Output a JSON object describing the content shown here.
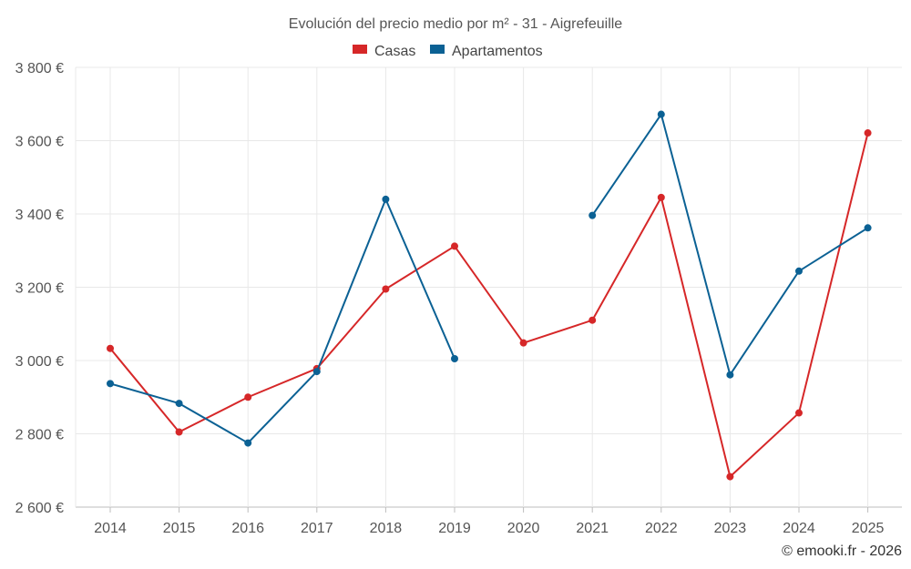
{
  "chart_data": {
    "type": "line",
    "title": "Evolución del precio medio por m² - 31 - Aigrefeuille",
    "x": [
      "2014",
      "2015",
      "2016",
      "2017",
      "2018",
      "2019",
      "2020",
      "2021",
      "2022",
      "2023",
      "2024",
      "2025"
    ],
    "y_ticks": [
      "2 600 €",
      "2 800 €",
      "3 000 €",
      "3 200 €",
      "3 400 €",
      "3 600 €",
      "3 800 €"
    ],
    "ylim": [
      2600,
      3800
    ],
    "grid": true,
    "legend_position": "top-center",
    "series": [
      {
        "name": "Casas",
        "color": "#d62728",
        "values": [
          3033,
          2805,
          2900,
          2978,
          3195,
          3312,
          3048,
          3110,
          3445,
          2683,
          2857,
          3621
        ]
      },
      {
        "name": "Apartamentos",
        "color": "#0b6194",
        "values": [
          2937,
          2883,
          2775,
          2970,
          3440,
          3005,
          null,
          3396,
          3672,
          2961,
          3244,
          3362
        ]
      }
    ],
    "credit": "© emooki.fr - 2026"
  }
}
